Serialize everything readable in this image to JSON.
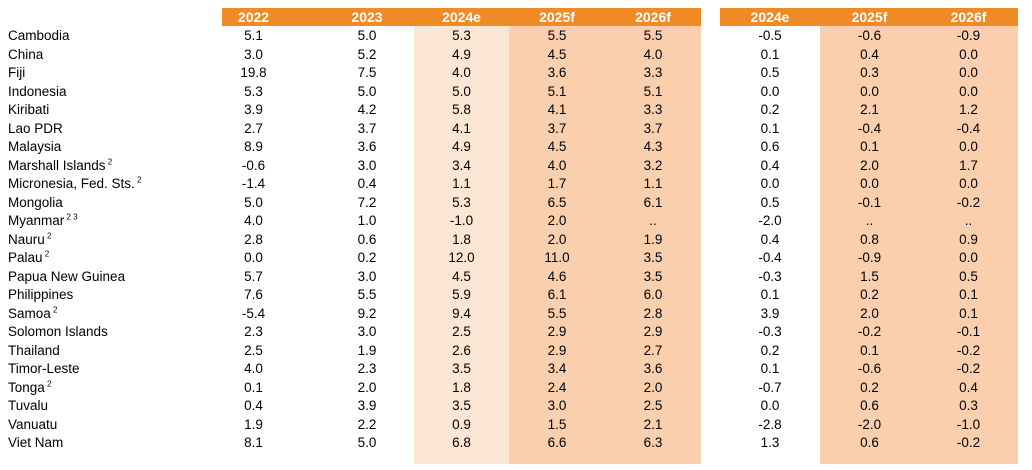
{
  "header": {
    "left": [
      "2022",
      "2023",
      "2024e",
      "2025f",
      "2026f"
    ],
    "right": [
      "2024e",
      "2025f",
      "2026f"
    ]
  },
  "rows": [
    {
      "name": "Cambodia",
      "note": "",
      "v": [
        "5.1",
        "5.0",
        "5.3",
        "5.5",
        "5.5"
      ],
      "d": [
        "-0.5",
        "-0.6",
        "-0.9"
      ]
    },
    {
      "name": "China",
      "note": "",
      "v": [
        "3.0",
        "5.2",
        "4.9",
        "4.5",
        "4.0"
      ],
      "d": [
        "0.1",
        "0.4",
        "0.0"
      ]
    },
    {
      "name": "Fiji",
      "note": "",
      "v": [
        "19.8",
        "7.5",
        "4.0",
        "3.6",
        "3.3"
      ],
      "d": [
        "0.5",
        "0.3",
        "0.0"
      ]
    },
    {
      "name": "Indonesia",
      "note": "",
      "v": [
        "5.3",
        "5.0",
        "5.0",
        "5.1",
        "5.1"
      ],
      "d": [
        "0.0",
        "0.0",
        "0.0"
      ]
    },
    {
      "name": "Kiribati",
      "note": "",
      "v": [
        "3.9",
        "4.2",
        "5.8",
        "4.1",
        "3.3"
      ],
      "d": [
        "0.2",
        "2.1",
        "1.2"
      ]
    },
    {
      "name": "Lao PDR",
      "note": "",
      "v": [
        "2.7",
        "3.7",
        "4.1",
        "3.7",
        "3.7"
      ],
      "d": [
        "0.1",
        "-0.4",
        "-0.4"
      ]
    },
    {
      "name": "Malaysia",
      "note": "",
      "v": [
        "8.9",
        "3.6",
        "4.9",
        "4.5",
        "4.3"
      ],
      "d": [
        "0.6",
        "0.1",
        "0.0"
      ]
    },
    {
      "name": "Marshall Islands",
      "note": "2",
      "v": [
        "-0.6",
        "3.0",
        "3.4",
        "4.0",
        "3.2"
      ],
      "d": [
        "0.4",
        "2.0",
        "1.7"
      ]
    },
    {
      "name": "Micronesia, Fed. Sts.",
      "note": "2",
      "v": [
        "-1.4",
        "0.4",
        "1.1",
        "1.7",
        "1.1"
      ],
      "d": [
        "0.0",
        "0.0",
        "0.0"
      ]
    },
    {
      "name": "Mongolia",
      "note": "",
      "v": [
        "5.0",
        "7.2",
        "5.3",
        "6.5",
        "6.1"
      ],
      "d": [
        "0.5",
        "-0.1",
        "-0.2"
      ]
    },
    {
      "name": "Myanmar",
      "note": "2 3",
      "v": [
        "4.0",
        "1.0",
        "-1.0",
        "2.0",
        ".."
      ],
      "d": [
        "-2.0",
        "..",
        ".."
      ]
    },
    {
      "name": "Nauru",
      "note": "2",
      "v": [
        "2.8",
        "0.6",
        "1.8",
        "2.0",
        "1.9"
      ],
      "d": [
        "0.4",
        "0.8",
        "0.9"
      ]
    },
    {
      "name": "Palau",
      "note": "2",
      "v": [
        "0.0",
        "0.2",
        "12.0",
        "11.0",
        "3.5"
      ],
      "d": [
        "-0.4",
        "-0.9",
        "0.0"
      ]
    },
    {
      "name": "Papua New Guinea",
      "note": "",
      "v": [
        "5.7",
        "3.0",
        "4.5",
        "4.6",
        "3.5"
      ],
      "d": [
        "-0.3",
        "1.5",
        "0.5"
      ]
    },
    {
      "name": "Philippines",
      "note": "",
      "v": [
        "7.6",
        "5.5",
        "5.9",
        "6.1",
        "6.0"
      ],
      "d": [
        "0.1",
        "0.2",
        "0.1"
      ]
    },
    {
      "name": "Samoa",
      "note": "2",
      "v": [
        "-5.4",
        "9.2",
        "9.4",
        "5.5",
        "2.8"
      ],
      "d": [
        "3.9",
        "2.0",
        "0.1"
      ]
    },
    {
      "name": "Solomon Islands",
      "note": "",
      "v": [
        "2.3",
        "3.0",
        "2.5",
        "2.9",
        "2.9"
      ],
      "d": [
        "-0.3",
        "-0.2",
        "-0.1"
      ]
    },
    {
      "name": "Thailand",
      "note": "",
      "v": [
        "2.5",
        "1.9",
        "2.6",
        "2.9",
        "2.7"
      ],
      "d": [
        "0.2",
        "0.1",
        "-0.2"
      ]
    },
    {
      "name": "Timor-Leste",
      "note": "",
      "v": [
        "4.0",
        "2.3",
        "3.5",
        "3.4",
        "3.6"
      ],
      "d": [
        "0.1",
        "-0.6",
        "-0.2"
      ]
    },
    {
      "name": "Tonga",
      "note": "2",
      "v": [
        "0.1",
        "2.0",
        "1.8",
        "2.4",
        "2.0"
      ],
      "d": [
        "-0.7",
        "0.2",
        "0.4"
      ]
    },
    {
      "name": "Tuvalu",
      "note": "",
      "v": [
        "0.4",
        "3.9",
        "3.5",
        "3.0",
        "2.5"
      ],
      "d": [
        "0.0",
        "0.6",
        "0.3"
      ]
    },
    {
      "name": "Vanuatu",
      "note": "",
      "v": [
        "1.9",
        "2.2",
        "0.9",
        "1.5",
        "2.1"
      ],
      "d": [
        "-2.8",
        "-2.0",
        "-1.0"
      ]
    },
    {
      "name": "Viet Nam",
      "note": "",
      "v": [
        "8.1",
        "5.0",
        "6.8",
        "6.6",
        "6.3"
      ],
      "d": [
        "1.3",
        "0.6",
        "-0.2"
      ]
    }
  ]
}
